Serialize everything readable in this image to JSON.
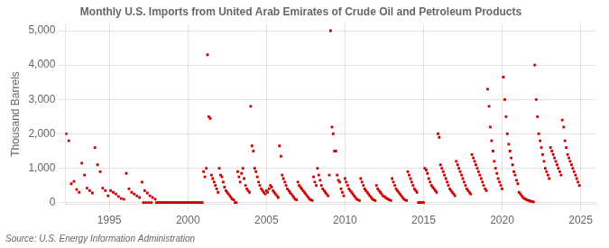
{
  "chart_data": {
    "type": "scatter",
    "title": "Monthly U.S. Imports from United Arab Emirates of Crude Oil and Petroleum Products",
    "ylabel": "Thousand Barrels",
    "annotation": "Source: U.S. Energy Information Administration",
    "color": "#CC0000",
    "marker": "square",
    "grid": true,
    "xlim": [
      1992.2,
      2026.0
    ],
    "ylim": [
      -50,
      5200
    ],
    "xticks": [
      1995,
      2000,
      2005,
      2010,
      2015,
      2020,
      2025
    ],
    "yticks": [
      0,
      {
        "value": 1000,
        "label": "1,000"
      },
      {
        "value": 2000,
        "label": "2,000"
      },
      {
        "value": 3000,
        "label": "3,000"
      },
      {
        "value": 4000,
        "label": "4,000"
      },
      {
        "value": 5000,
        "label": "5,000"
      }
    ],
    "x": [
      1992.25,
      1992.42,
      1992.58,
      1992.75,
      1992.92,
      1993.08,
      1993.25,
      1993.42,
      1993.58,
      1993.75,
      1993.92,
      1994.08,
      1994.25,
      1994.42,
      1994.58,
      1994.75,
      1994.92,
      1995.08,
      1995.25,
      1995.42,
      1995.58,
      1995.75,
      1995.92,
      1996.08,
      1996.25,
      1996.42,
      1996.58,
      1996.75,
      1996.92,
      1997.08,
      1997.25,
      1997.42,
      1997.58,
      1997.75,
      1997.92,
      1997.17,
      1997.33,
      1997.5,
      1997.67,
      1998.0,
      1998.08,
      1998.17,
      1998.25,
      1998.33,
      1998.42,
      1998.5,
      1998.58,
      1998.67,
      1998.75,
      1998.83,
      1998.92,
      1999.0,
      1999.08,
      1999.17,
      1999.25,
      1999.33,
      1999.42,
      1999.5,
      1999.58,
      1999.67,
      1999.75,
      1999.83,
      1999.92,
      2000.0,
      2000.08,
      2000.17,
      2000.25,
      2000.33,
      2000.42,
      2000.5,
      2000.58,
      2000.67,
      2000.75,
      2000.83,
      2000.92,
      2001.0,
      2001.08,
      2001.17,
      2001.25,
      2001.33,
      2001.42,
      2001.5,
      2001.58,
      2001.67,
      2001.75,
      2001.83,
      2001.92,
      2002.0,
      2002.08,
      2002.17,
      2002.25,
      2002.33,
      2002.42,
      2002.5,
      2002.58,
      2002.67,
      2002.75,
      2002.83,
      2002.92,
      2003.0,
      2003.08,
      2003.17,
      2003.25,
      2003.33,
      2003.42,
      2003.5,
      2003.58,
      2003.67,
      2003.75,
      2003.83,
      2003.92,
      2004.0,
      2004.08,
      2004.17,
      2004.25,
      2004.33,
      2004.42,
      2004.5,
      2004.58,
      2004.67,
      2004.75,
      2004.83,
      2004.92,
      2005.0,
      2005.08,
      2005.17,
      2005.25,
      2005.33,
      2005.42,
      2005.5,
      2005.58,
      2005.67,
      2005.75,
      2005.83,
      2005.92,
      2006.0,
      2006.08,
      2006.17,
      2006.25,
      2006.33,
      2006.42,
      2006.5,
      2006.58,
      2006.67,
      2006.75,
      2006.83,
      2006.92,
      2007.0,
      2007.08,
      2007.17,
      2007.25,
      2007.33,
      2007.42,
      2007.5,
      2007.58,
      2007.67,
      2007.75,
      2007.83,
      2007.92,
      2008.0,
      2008.08,
      2008.17,
      2008.25,
      2008.33,
      2008.42,
      2008.5,
      2008.58,
      2008.67,
      2008.75,
      2008.83,
      2008.92,
      2009.0,
      2009.08,
      2009.17,
      2009.25,
      2009.33,
      2009.42,
      2009.5,
      2009.58,
      2009.67,
      2009.75,
      2009.83,
      2009.92,
      2010.0,
      2010.08,
      2010.17,
      2010.25,
      2010.33,
      2010.42,
      2010.5,
      2010.58,
      2010.67,
      2010.75,
      2010.83,
      2010.92,
      2011.0,
      2011.08,
      2011.17,
      2011.25,
      2011.33,
      2011.42,
      2011.5,
      2011.58,
      2011.67,
      2011.75,
      2011.83,
      2011.92,
      2012.0,
      2012.08,
      2012.17,
      2012.25,
      2012.33,
      2012.42,
      2012.5,
      2012.58,
      2012.67,
      2012.75,
      2012.83,
      2012.92,
      2013.0,
      2013.08,
      2013.17,
      2013.25,
      2013.33,
      2013.42,
      2013.5,
      2013.58,
      2013.67,
      2013.75,
      2013.83,
      2013.92,
      2014.0,
      2014.08,
      2014.17,
      2014.25,
      2014.33,
      2014.42,
      2014.5,
      2014.58,
      2014.67,
      2014.75,
      2014.83,
      2014.92,
      2015.0,
      2015.08,
      2015.17,
      2015.25,
      2015.33,
      2015.42,
      2015.5,
      2015.58,
      2015.67,
      2015.75,
      2015.83,
      2015.92,
      2016.0,
      2016.08,
      2016.17,
      2016.25,
      2016.33,
      2016.42,
      2016.5,
      2016.58,
      2016.67,
      2016.75,
      2016.83,
      2016.92,
      2017.0,
      2017.08,
      2017.17,
      2017.25,
      2017.33,
      2017.42,
      2017.5,
      2017.58,
      2017.67,
      2017.75,
      2017.83,
      2017.92,
      2018.0,
      2018.08,
      2018.17,
      2018.25,
      2018.33,
      2018.42,
      2018.5,
      2018.58,
      2018.67,
      2018.75,
      2018.83,
      2018.92,
      2019.0,
      2019.08,
      2019.17,
      2019.25,
      2019.33,
      2019.42,
      2019.5,
      2019.58,
      2019.67,
      2019.75,
      2019.83,
      2019.92,
      2020.0,
      2020.08,
      2020.17,
      2020.25,
      2020.33,
      2020.42,
      2020.5,
      2020.58,
      2020.67,
      2020.75,
      2020.83,
      2020.92,
      2021.0,
      2021.08,
      2021.17,
      2021.25,
      2021.33,
      2021.42,
      2021.5,
      2021.58,
      2021.67,
      2021.75,
      2021.83,
      2021.92,
      2022.0,
      2022.08,
      2022.17,
      2022.25,
      2022.33,
      2022.42,
      2022.5,
      2022.58,
      2022.67,
      2022.75,
      2022.83,
      2022.92,
      2023.0,
      2023.08,
      2023.17,
      2023.25,
      2023.33,
      2023.42,
      2023.5,
      2023.58,
      2023.67,
      2023.75,
      2023.83,
      2023.92,
      2024.0,
      2024.08,
      2024.17,
      2024.25,
      2024.33,
      2024.42,
      2024.5,
      2024.58,
      2024.67,
      2024.75,
      2024.83,
      2024.92
    ],
    "values": [
      2000,
      1800,
      550,
      620,
      380,
      300,
      1150,
      800,
      420,
      350,
      280,
      1600,
      1100,
      900,
      420,
      350,
      200,
      350,
      300,
      250,
      180,
      120,
      100,
      850,
      400,
      300,
      250,
      200,
      150,
      600,
      350,
      280,
      200,
      150,
      100,
      0,
      0,
      0,
      0,
      0,
      0,
      0,
      0,
      0,
      0,
      0,
      0,
      0,
      0,
      0,
      0,
      0,
      0,
      0,
      0,
      0,
      0,
      0,
      0,
      0,
      0,
      0,
      0,
      0,
      0,
      0,
      0,
      0,
      0,
      0,
      0,
      0,
      0,
      0,
      0,
      900,
      750,
      1000,
      4300,
      2500,
      2450,
      800,
      700,
      600,
      500,
      400,
      300,
      1000,
      800,
      750,
      600,
      450,
      350,
      300,
      250,
      200,
      150,
      100,
      80,
      0,
      0,
      900,
      750,
      600,
      850,
      1000,
      700,
      500,
      400,
      350,
      300,
      2800,
      1650,
      1500,
      1000,
      900,
      750,
      600,
      500,
      400,
      350,
      300,
      250,
      350,
      300,
      400,
      500,
      450,
      350,
      300,
      250,
      200,
      150,
      1650,
      1350,
      800,
      700,
      600,
      500,
      400,
      350,
      300,
      250,
      200,
      150,
      100,
      80,
      600,
      500,
      450,
      400,
      350,
      300,
      250,
      200,
      150,
      100,
      80,
      60,
      750,
      600,
      500,
      1000,
      800,
      650,
      500,
      400,
      350,
      300,
      250,
      200,
      800,
      5000,
      2200,
      2000,
      1500,
      1500,
      800,
      650,
      600,
      400,
      300,
      200,
      700,
      600,
      500,
      400,
      350,
      300,
      250,
      200,
      150,
      100,
      80,
      60,
      700,
      600,
      500,
      400,
      350,
      300,
      250,
      200,
      150,
      100,
      80,
      60,
      500,
      400,
      350,
      300,
      250,
      200,
      180,
      150,
      120,
      100,
      80,
      60,
      700,
      600,
      500,
      400,
      350,
      300,
      250,
      200,
      150,
      100,
      80,
      60,
      900,
      800,
      700,
      600,
      500,
      400,
      350,
      300,
      0,
      0,
      0,
      0,
      0,
      1000,
      950,
      850,
      700,
      600,
      500,
      450,
      400,
      350,
      300,
      2000,
      1900,
      1100,
      1000,
      900,
      800,
      700,
      600,
      500,
      400,
      350,
      300,
      250,
      200,
      1200,
      1100,
      1000,
      900,
      800,
      700,
      600,
      500,
      400,
      350,
      300,
      250,
      1400,
      1300,
      1200,
      1100,
      1000,
      900,
      800,
      700,
      600,
      500,
      400,
      350,
      3300,
      2800,
      2200,
      1800,
      1500,
      1200,
      1000,
      850,
      700,
      600,
      500,
      400,
      3650,
      3000,
      2500,
      2000,
      1700,
      1500,
      1300,
      1100,
      900,
      800,
      650,
      550,
      300,
      250,
      200,
      150,
      120,
      100,
      80,
      60,
      50,
      40,
      30,
      20,
      4000,
      3000,
      2500,
      2000,
      1800,
      1600,
      1400,
      1200,
      1000,
      900,
      800,
      700,
      1600,
      1500,
      1400,
      1300,
      1200,
      1100,
      1000,
      900,
      800,
      2400,
      2200,
      1800,
      1600,
      1400,
      1300,
      1200,
      1100,
      1000,
      900,
      800,
      700,
      600,
      500
    ]
  }
}
